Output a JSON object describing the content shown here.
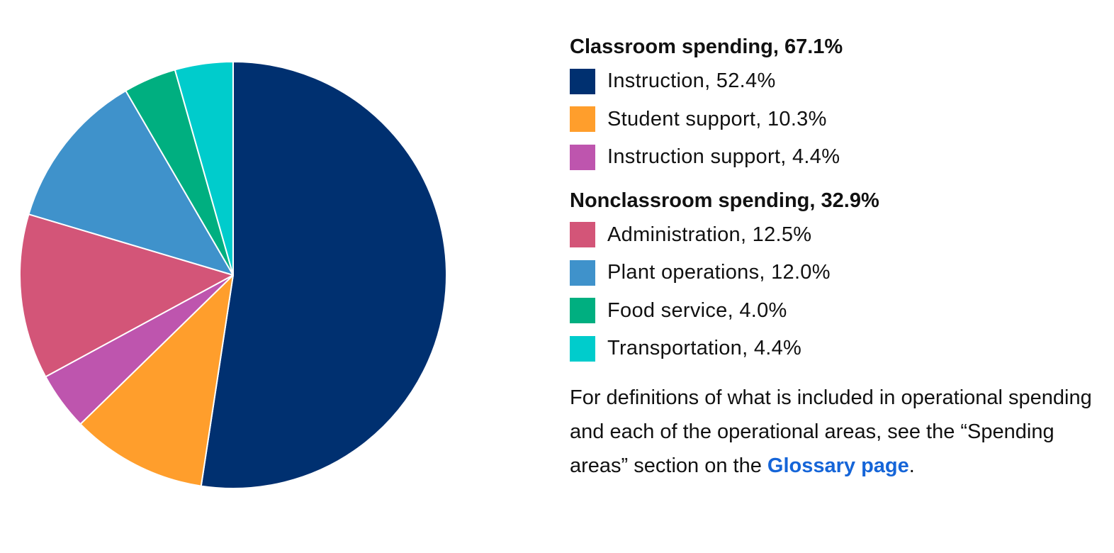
{
  "chart_data": {
    "type": "pie",
    "title": "",
    "start_angle_deg": 0,
    "direction": "clockwise",
    "center": [
      329,
      388
    ],
    "radius": 301,
    "slices": [
      {
        "name": "Instruction",
        "value": 52.4,
        "color": "#003070",
        "group": "Classroom spending"
      },
      {
        "name": "Student support",
        "value": 10.3,
        "color": "#FF9E2C",
        "group": "Classroom spending"
      },
      {
        "name": "Instruction support",
        "value": 4.4,
        "color": "#BE55AE",
        "group": "Classroom spending"
      },
      {
        "name": "Administration",
        "value": 12.5,
        "color": "#D35578",
        "group": "Nonclassroom spending"
      },
      {
        "name": "Plant operations",
        "value": 12.0,
        "color": "#3F92CB",
        "group": "Nonclassroom spending"
      },
      {
        "name": "Food service",
        "value": 4.0,
        "color": "#00AF80",
        "group": "Nonclassroom spending"
      },
      {
        "name": "Transportation",
        "value": 4.4,
        "color": "#00CCCC",
        "group": "Nonclassroom spending"
      }
    ],
    "legend_position": "right"
  },
  "legend": {
    "groups": [
      {
        "title": "Classroom spending, 67.1%",
        "items": [
          {
            "label": "Instruction, 52.4%",
            "color": "#003070"
          },
          {
            "label": "Student support, 10.3%",
            "color": "#FF9E2C"
          },
          {
            "label": "Instruction support, 4.4%",
            "color": "#BE55AE"
          }
        ]
      },
      {
        "title": "Nonclassroom spending, 32.9%",
        "items": [
          {
            "label": "Administration, 12.5%",
            "color": "#D35578"
          },
          {
            "label": "Plant operations, 12.0%",
            "color": "#3F92CB"
          },
          {
            "label": "Food service, 4.0%",
            "color": "#00AF80"
          },
          {
            "label": "Transportation, 4.4%",
            "color": "#00CCCC"
          }
        ]
      }
    ]
  },
  "note": {
    "text_before": "For definitions of what is included in operational spending and each of the operational areas, see the “Spending areas” section on the ",
    "link_label": "Glossary page",
    "text_after": ".",
    "link_color": "#1565d8"
  }
}
